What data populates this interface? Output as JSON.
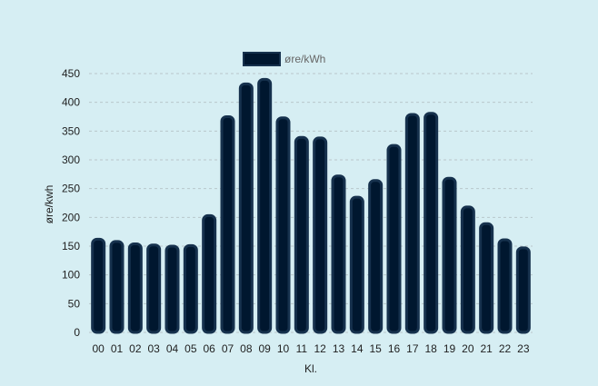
{
  "colors": {
    "background": "#d6eef3",
    "bar_fill": "#00172f",
    "bar_stroke": "#16314d",
    "grid": "#b9c7cb"
  },
  "chart_data": {
    "type": "bar",
    "categories": [
      "00",
      "01",
      "02",
      "03",
      "04",
      "05",
      "06",
      "07",
      "08",
      "09",
      "10",
      "11",
      "12",
      "13",
      "14",
      "15",
      "16",
      "17",
      "18",
      "19",
      "20",
      "21",
      "22",
      "23"
    ],
    "series": [
      {
        "name": "øre/kWh",
        "values": [
          162,
          158,
          154,
          152,
          150,
          151,
          203,
          375,
          432,
          440,
          373,
          339,
          338,
          272,
          235,
          264,
          325,
          379,
          381,
          268,
          218,
          189,
          161,
          147
        ]
      }
    ],
    "title": "",
    "xlabel": "Kl.",
    "ylabel": "øre/kwh",
    "ylim": [
      0,
      450
    ],
    "yticks": [
      0,
      50,
      100,
      150,
      200,
      250,
      300,
      350,
      400,
      450
    ],
    "grid": true,
    "legend_position": "top-center"
  }
}
